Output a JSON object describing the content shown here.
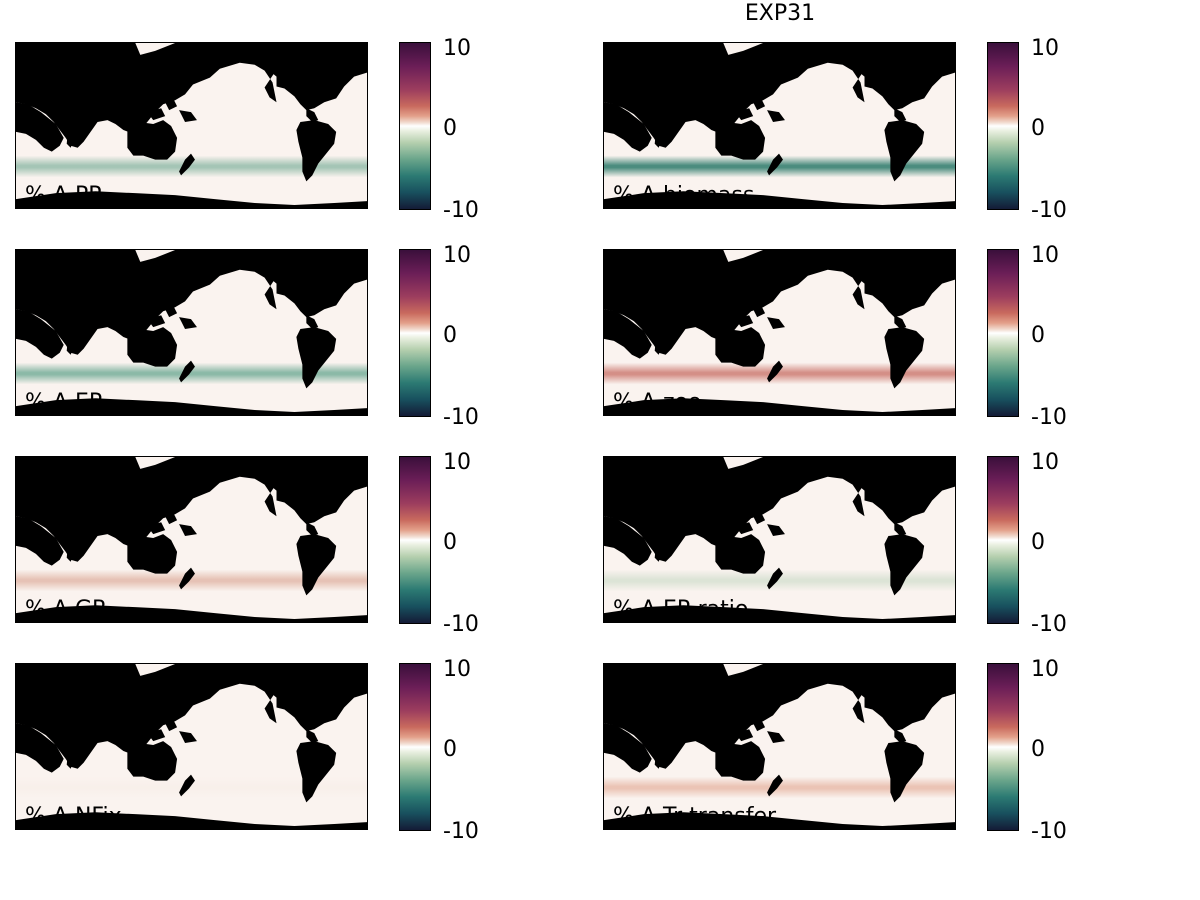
{
  "figure_title": "EXP31",
  "colorbar": {
    "max_label": "10",
    "mid_label": "0",
    "min_label": "-10",
    "range": [
      -10,
      10
    ],
    "colormap": [
      "#3a0f3b",
      "#9c3d5e",
      "#e3a08a",
      "#ffffff",
      "#b5cfae",
      "#2c7a73",
      "#141b36"
    ]
  },
  "land_color": "#000000",
  "ocean_base_color": "#faf3ef",
  "panels": [
    {
      "id": "pp",
      "label": "% Δ PP",
      "band_color": "#5e9f86",
      "band_strength": 0.55
    },
    {
      "id": "biomass",
      "label": "% Δ biomass",
      "band_color": "#2c7a6a",
      "band_strength": 0.85
    },
    {
      "id": "ep",
      "label": "% Δ EP",
      "band_color": "#4f9a80",
      "band_strength": 0.65
    },
    {
      "id": "zoo",
      "label": "% Δ zoo",
      "band_color": "#c4645a",
      "band_strength": 0.7
    },
    {
      "id": "gr",
      "label": "% Δ GR",
      "band_color": "#d69a86",
      "band_strength": 0.55
    },
    {
      "id": "ep-ratio",
      "label": "% Δ EP-ratio",
      "band_color": "#b7d1b8",
      "band_strength": 0.45
    },
    {
      "id": "nfix",
      "label": "% Δ NFix",
      "band_color": "#f2e2d8",
      "band_strength": 0.2
    },
    {
      "id": "tr-transfer",
      "label": "% Δ Tr transfer",
      "band_color": "#e1a48e",
      "band_strength": 0.6
    }
  ]
}
